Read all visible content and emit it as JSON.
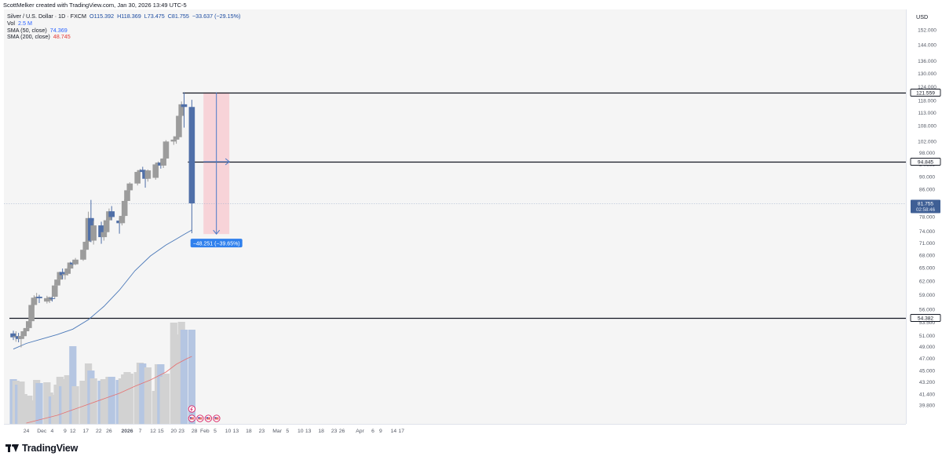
{
  "header": {
    "attribution": "ScottMelker created with TradingView.com, Jan 30, 2026 13:49 UTC-5"
  },
  "legend": {
    "symbol": "Silver / U.S. Dollar · 1D · FXCM",
    "open": "O115.392",
    "high": "H118.369",
    "low": "L73.475",
    "close": "C81.755",
    "change": "−33.637 (−29.15%)",
    "vol_label": "Vol",
    "vol_value": "2.5 M",
    "sma50_label": "SMA (50, close)",
    "sma50_value": "74.369",
    "sma200_label": "SMA (200, close)",
    "sma200_value": "48.745"
  },
  "footer": {
    "brand": "TradingView"
  },
  "colors": {
    "up": "#9c9c9c",
    "down": "#4f6fa8",
    "vol_up": "#d2d2d2",
    "vol_down": "#b5c6e2",
    "sma50": "#4a78b8",
    "sma200": "#e57373",
    "plot_bg": "#f5f5f5",
    "measure_fill": "#f7cfd5",
    "measure_line": "#4a7ac8",
    "badge": "#2f80ed"
  },
  "chart_data": {
    "type": "candlestick",
    "title": "",
    "currency_label": "USD",
    "y_ticks": [
      39.8,
      41.4,
      43.2,
      45.0,
      47.0,
      49.0,
      51.0,
      53.5,
      56.0,
      59.0,
      62.0,
      65.0,
      68.0,
      71.0,
      74.0,
      78.0,
      82.0,
      86.0,
      90.0,
      94.0,
      98.0,
      102.0,
      108.0,
      113.0,
      118.0,
      124.0,
      130.0,
      136.0,
      144.0,
      152.0
    ],
    "y_tick_labels": [
      "39.800",
      "41.400",
      "43.200",
      "45.000",
      "47.000",
      "49.000",
      "51.000",
      "53.500",
      "56.000",
      "59.000",
      "62.000",
      "65.000",
      "68.000",
      "71.000",
      "74.000",
      "78.000",
      "82.000",
      "86.000",
      "90.000",
      "94.000",
      "98.000",
      "102.000",
      "108.000",
      "113.000",
      "118.000",
      "124.000",
      "130.000",
      "136.000",
      "144.000",
      "152.000"
    ],
    "x_ticks": [
      {
        "label": "24",
        "day": 0
      },
      {
        "label": "Dec",
        "day": 6
      },
      {
        "label": "4",
        "day": 10
      },
      {
        "label": "9",
        "day": 15
      },
      {
        "label": "12",
        "day": 18
      },
      {
        "label": "17",
        "day": 23
      },
      {
        "label": "22",
        "day": 28
      },
      {
        "label": "26",
        "day": 32
      },
      {
        "label": "2026",
        "day": 39
      },
      {
        "label": "7",
        "day": 44
      },
      {
        "label": "12",
        "day": 49
      },
      {
        "label": "15",
        "day": 52
      },
      {
        "label": "20",
        "day": 57
      },
      {
        "label": "23",
        "day": 60
      },
      {
        "label": "28",
        "day": 65
      },
      {
        "label": "Feb",
        "day": 69
      },
      {
        "label": "5",
        "day": 73
      },
      {
        "label": "10",
        "day": 78
      },
      {
        "label": "13",
        "day": 81
      },
      {
        "label": "18",
        "day": 86
      },
      {
        "label": "23",
        "day": 91
      },
      {
        "label": "Mar",
        "day": 97
      },
      {
        "label": "5",
        "day": 101
      },
      {
        "label": "10",
        "day": 106
      },
      {
        "label": "13",
        "day": 109
      },
      {
        "label": "18",
        "day": 114
      },
      {
        "label": "23",
        "day": 119
      },
      {
        "label": "26",
        "day": 122
      },
      {
        "label": "Apr",
        "day": 129
      },
      {
        "label": "6",
        "day": 134
      },
      {
        "label": "9",
        "day": 137
      },
      {
        "label": "14",
        "day": 142
      },
      {
        "label": "17",
        "day": 145
      }
    ],
    "ohlc": [
      {
        "day": -5,
        "o": 51.4,
        "h": 51.9,
        "l": 50.2,
        "c": 50.7
      },
      {
        "day": -4,
        "o": 50.7,
        "h": 51.8,
        "l": 49.9,
        "c": 50.9
      },
      {
        "day": -3,
        "o": 50.9,
        "h": 51.5,
        "l": 49.8,
        "c": 50.4
      },
      {
        "day": -2,
        "o": 50.4,
        "h": 51.3,
        "l": 48.9,
        "c": 50.9
      },
      {
        "day": -1,
        "o": 50.9,
        "h": 52.2,
        "l": 50.5,
        "c": 51.8
      },
      {
        "day": 0,
        "o": 51.8,
        "h": 53.2,
        "l": 51.5,
        "c": 52.4
      },
      {
        "day": 1,
        "o": 52.4,
        "h": 54.2,
        "l": 52.0,
        "c": 53.7
      },
      {
        "day": 2,
        "o": 53.7,
        "h": 57.2,
        "l": 53.5,
        "c": 56.9
      },
      {
        "day": 3,
        "o": 56.9,
        "h": 58.9,
        "l": 56.4,
        "c": 58.4
      },
      {
        "day": 4,
        "o": 58.4,
        "h": 59.4,
        "l": 57.4,
        "c": 58.6
      },
      {
        "day": 5,
        "o": 58.6,
        "h": 59.0,
        "l": 57.3,
        "c": 58.3
      },
      {
        "day": 8,
        "o": 57.6,
        "h": 58.8,
        "l": 57.2,
        "c": 58.3
      },
      {
        "day": 9,
        "o": 57.8,
        "h": 58.6,
        "l": 57.3,
        "c": 58.5
      },
      {
        "day": 10,
        "o": 58.3,
        "h": 58.8,
        "l": 57.6,
        "c": 58.2
      },
      {
        "day": 11,
        "o": 58.6,
        "h": 61.5,
        "l": 58.3,
        "c": 61.0
      },
      {
        "day": 12,
        "o": 61.0,
        "h": 63.2,
        "l": 60.5,
        "c": 62.3
      },
      {
        "day": 13,
        "o": 62.3,
        "h": 64.1,
        "l": 61.3,
        "c": 64.0
      },
      {
        "day": 14,
        "o": 64.0,
        "h": 64.8,
        "l": 62.4,
        "c": 63.3
      },
      {
        "day": 15,
        "o": 63.3,
        "h": 64.0,
        "l": 62.3,
        "c": 63.6
      },
      {
        "day": 16,
        "o": 63.6,
        "h": 65.2,
        "l": 63.2,
        "c": 64.8
      },
      {
        "day": 17,
        "o": 64.8,
        "h": 66.4,
        "l": 64.4,
        "c": 66.2
      },
      {
        "day": 18,
        "o": 66.2,
        "h": 66.8,
        "l": 65.6,
        "c": 65.8
      },
      {
        "day": 19,
        "o": 65.8,
        "h": 67.3,
        "l": 65.6,
        "c": 66.9
      },
      {
        "day": 22,
        "o": 66.9,
        "h": 69.8,
        "l": 66.6,
        "c": 69.3
      },
      {
        "day": 23,
        "o": 69.3,
        "h": 71.6,
        "l": 69.1,
        "c": 71.3
      },
      {
        "day": 24,
        "o": 71.3,
        "h": 79.4,
        "l": 71.0,
        "c": 77.6
      },
      {
        "day": 25,
        "o": 77.6,
        "h": 82.8,
        "l": 71.2,
        "c": 71.6
      },
      {
        "day": 26,
        "o": 71.6,
        "h": 76.8,
        "l": 70.6,
        "c": 75.6
      },
      {
        "day": 29,
        "o": 75.6,
        "h": 76.6,
        "l": 70.8,
        "c": 72.5
      },
      {
        "day": 30,
        "o": 72.5,
        "h": 74.6,
        "l": 71.6,
        "c": 73.8
      },
      {
        "day": 31,
        "o": 73.8,
        "h": 77.4,
        "l": 73.5,
        "c": 77.0
      },
      {
        "day": 32,
        "o": 77.0,
        "h": 80.3,
        "l": 76.7,
        "c": 79.5
      },
      {
        "day": 33,
        "o": 79.5,
        "h": 81.0,
        "l": 77.0,
        "c": 77.9
      },
      {
        "day": 36,
        "o": 76.9,
        "h": 77.6,
        "l": 73.4,
        "c": 76.2
      },
      {
        "day": 37,
        "o": 76.2,
        "h": 78.5,
        "l": 75.6,
        "c": 78.2
      },
      {
        "day": 38,
        "o": 78.2,
        "h": 83.0,
        "l": 77.8,
        "c": 82.5
      },
      {
        "day": 39,
        "o": 82.5,
        "h": 86.0,
        "l": 82.2,
        "c": 85.7
      },
      {
        "day": 40,
        "o": 85.7,
        "h": 88.2,
        "l": 85.0,
        "c": 87.8
      },
      {
        "day": 43,
        "o": 87.8,
        "h": 92.0,
        "l": 87.2,
        "c": 91.5
      },
      {
        "day": 44,
        "o": 91.5,
        "h": 92.5,
        "l": 90.8,
        "c": 92.1
      },
      {
        "day": 45,
        "o": 92.2,
        "h": 93.2,
        "l": 91.0,
        "c": 91.5
      },
      {
        "day": 46,
        "o": 91.5,
        "h": 92.0,
        "l": 86.5,
        "c": 89.3
      },
      {
        "day": 47,
        "o": 89.3,
        "h": 92.3,
        "l": 88.4,
        "c": 92.0
      },
      {
        "day": 50,
        "o": 89.6,
        "h": 94.5,
        "l": 89.0,
        "c": 94.0
      },
      {
        "day": 51,
        "o": 94.0,
        "h": 95.0,
        "l": 93.2,
        "c": 94.6
      },
      {
        "day": 52,
        "o": 94.6,
        "h": 95.7,
        "l": 92.6,
        "c": 93.6
      },
      {
        "day": 53,
        "o": 93.6,
        "h": 96.4,
        "l": 92.8,
        "c": 96.0
      },
      {
        "day": 54,
        "o": 96.0,
        "h": 102.5,
        "l": 95.7,
        "c": 102.0
      },
      {
        "day": 57,
        "o": 102.0,
        "h": 103.9,
        "l": 100.8,
        "c": 102.7
      },
      {
        "day": 58,
        "o": 102.7,
        "h": 104.2,
        "l": 101.2,
        "c": 103.9
      },
      {
        "day": 59,
        "o": 103.6,
        "h": 112.3,
        "l": 103.4,
        "c": 111.8
      },
      {
        "day": 60,
        "o": 111.8,
        "h": 117.7,
        "l": 111.2,
        "c": 116.5
      },
      {
        "day": 61,
        "o": 116.5,
        "h": 121.6,
        "l": 107.2,
        "c": 115.4
      },
      {
        "day": 64,
        "o": 115.4,
        "h": 118.4,
        "l": 73.5,
        "c": 81.8
      }
    ],
    "volume": [
      {
        "day": -5,
        "v": 0.57
      },
      {
        "day": -4,
        "v": 0.55
      },
      {
        "day": -3,
        "v": 0.5
      },
      {
        "day": -2,
        "v": 0.54
      },
      {
        "day": -1,
        "v": 0.38
      },
      {
        "day": 0,
        "v": 0.33
      },
      {
        "day": 1,
        "v": 0.36
      },
      {
        "day": 2,
        "v": 0.3
      },
      {
        "day": 3,
        "v": 0.23
      },
      {
        "day": 4,
        "v": 0.56
      },
      {
        "day": 5,
        "v": 0.52
      },
      {
        "day": 8,
        "v": 0.53
      },
      {
        "day": 9,
        "v": 0.4
      },
      {
        "day": 10,
        "v": 0.35
      },
      {
        "day": 11,
        "v": 0.37
      },
      {
        "day": 12,
        "v": 0.5
      },
      {
        "day": 13,
        "v": 0.6
      },
      {
        "day": 14,
        "v": 0.48
      },
      {
        "day": 15,
        "v": 0.57
      },
      {
        "day": 16,
        "v": 0.62
      },
      {
        "day": 17,
        "v": 0.5
      },
      {
        "day": 18,
        "v": 0.99
      },
      {
        "day": 19,
        "v": 0.48
      },
      {
        "day": 22,
        "v": 0.55
      },
      {
        "day": 23,
        "v": 0.55
      },
      {
        "day": 24,
        "v": 0.77
      },
      {
        "day": 25,
        "v": 0.68
      },
      {
        "day": 26,
        "v": 0.58
      },
      {
        "day": 29,
        "v": 0.55
      },
      {
        "day": 30,
        "v": 0.57
      },
      {
        "day": 31,
        "v": 0.57
      },
      {
        "day": 32,
        "v": 0.6
      },
      {
        "day": 33,
        "v": 0.6
      },
      {
        "day": 36,
        "v": 0.56
      },
      {
        "day": 37,
        "v": 0.58
      },
      {
        "day": 38,
        "v": 0.63
      },
      {
        "day": 39,
        "v": 0.66
      },
      {
        "day": 40,
        "v": 0.64
      },
      {
        "day": 43,
        "v": 0.66
      },
      {
        "day": 44,
        "v": 0.78
      },
      {
        "day": 45,
        "v": 0.77
      },
      {
        "day": 46,
        "v": 0.72
      },
      {
        "day": 47,
        "v": 0.72
      },
      {
        "day": 50,
        "v": 0.42
      },
      {
        "day": 51,
        "v": 0.76
      },
      {
        "day": 52,
        "v": 0.76
      },
      {
        "day": 53,
        "v": 0.6
      },
      {
        "day": 54,
        "v": 0.64
      },
      {
        "day": 57,
        "v": 1.29
      },
      {
        "day": 58,
        "v": 1.14
      },
      {
        "day": 59,
        "v": 0.96
      },
      {
        "day": 60,
        "v": 1.3
      },
      {
        "day": 61,
        "v": 1.2
      },
      {
        "day": 64,
        "v": 1.2
      }
    ],
    "sma50": [
      {
        "day": -5,
        "y": 48.6
      },
      {
        "day": 0,
        "y": 49.6
      },
      {
        "day": 6,
        "y": 50.4
      },
      {
        "day": 12,
        "y": 51.2
      },
      {
        "day": 18,
        "y": 52.2
      },
      {
        "day": 24,
        "y": 54.0
      },
      {
        "day": 30,
        "y": 56.6
      },
      {
        "day": 36,
        "y": 60.0
      },
      {
        "day": 42,
        "y": 64.3
      },
      {
        "day": 48,
        "y": 67.8
      },
      {
        "day": 54,
        "y": 70.5
      },
      {
        "day": 58,
        "y": 72.0
      },
      {
        "day": 61,
        "y": 73.2
      },
      {
        "day": 64,
        "y": 74.369
      }
    ],
    "sma200_volume_overlay": [
      {
        "day": 0,
        "v": 0.01
      },
      {
        "day": 6,
        "v": 0.06
      },
      {
        "day": 12,
        "v": 0.11
      },
      {
        "day": 18,
        "v": 0.18
      },
      {
        "day": 24,
        "v": 0.25
      },
      {
        "day": 30,
        "v": 0.32
      },
      {
        "day": 36,
        "v": 0.39
      },
      {
        "day": 42,
        "v": 0.48
      },
      {
        "day": 48,
        "v": 0.56
      },
      {
        "day": 54,
        "v": 0.66
      },
      {
        "day": 58,
        "v": 0.76
      },
      {
        "day": 62,
        "v": 0.83
      },
      {
        "day": 64,
        "v": 0.86
      }
    ],
    "horizontal_levels": [
      {
        "value": 121.559,
        "label": "121.559",
        "from_day": 62
      },
      {
        "value": 94.845,
        "label": "94.845",
        "from_day": 64
      },
      {
        "value": 54.382,
        "label": "54.382",
        "from_day": -5
      }
    ],
    "last_price": {
      "value": 81.755,
      "label": "81.755",
      "countdown": "02:58:46"
    },
    "measure": {
      "from_day": 68.5,
      "to_day": 78.5,
      "top": 121.559,
      "bottom": 73.3,
      "label": "−48.251 (−39.65%)"
    }
  }
}
